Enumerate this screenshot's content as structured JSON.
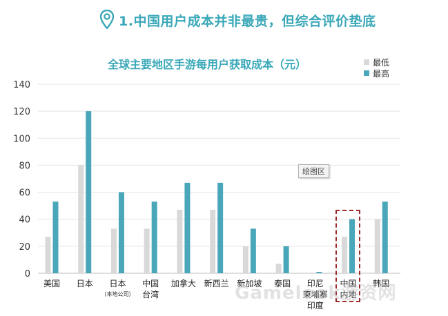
{
  "header": {
    "title": "1.中国用户成本并非最贵，但综合评价垫底",
    "pin_icon": "map-pin-icon"
  },
  "chart_data": {
    "type": "bar",
    "title": "全球主要地区手游每用户获取成本（元）",
    "categories": [
      [
        "美国"
      ],
      [
        "日本"
      ],
      [
        "日本",
        "（本地公司）"
      ],
      [
        "中国",
        "台湾"
      ],
      [
        "加拿大"
      ],
      [
        "新西兰"
      ],
      [
        "新加坡"
      ],
      [
        "泰国"
      ],
      [
        "印尼",
        "柬埔寨",
        "印度"
      ],
      [
        "中国",
        "内地"
      ],
      [
        "韩国"
      ]
    ],
    "series": [
      {
        "name": "最低",
        "color": "#d9d9d9",
        "values": [
          27,
          80,
          33,
          33,
          47,
          47,
          20,
          7,
          0,
          27,
          40
        ]
      },
      {
        "name": "最高",
        "color": "#4aa7b9",
        "values": [
          53,
          120,
          60,
          53,
          67,
          67,
          33,
          20,
          1,
          40,
          53
        ]
      }
    ],
    "ylim": [
      0,
      140
    ],
    "yticks": [
      0,
      20,
      40,
      60,
      80,
      100,
      120,
      140
    ],
    "grid": true,
    "legend_position": "top-right",
    "highlight_category": "中国内地"
  },
  "annotations": {
    "plot_area_tag": "绘图区"
  },
  "watermark": "Gamelook游资网"
}
